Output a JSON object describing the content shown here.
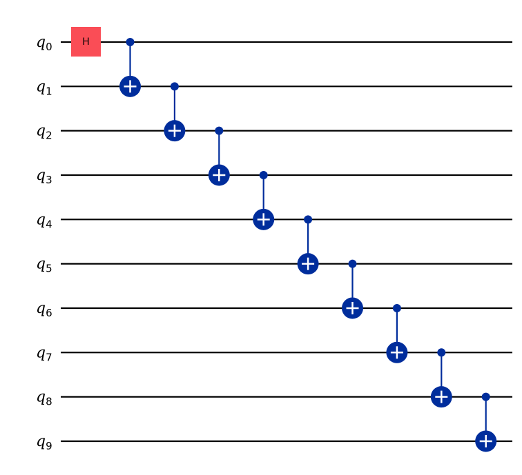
{
  "qubits": [
    {
      "name": "q",
      "index": "0"
    },
    {
      "name": "q",
      "index": "1"
    },
    {
      "name": "q",
      "index": "2"
    },
    {
      "name": "q",
      "index": "3"
    },
    {
      "name": "q",
      "index": "4"
    },
    {
      "name": "q",
      "index": "5"
    },
    {
      "name": "q",
      "index": "6"
    },
    {
      "name": "q",
      "index": "7"
    },
    {
      "name": "q",
      "index": "8"
    },
    {
      "name": "q",
      "index": "9"
    }
  ],
  "h_gate": {
    "label": "H"
  }
}
